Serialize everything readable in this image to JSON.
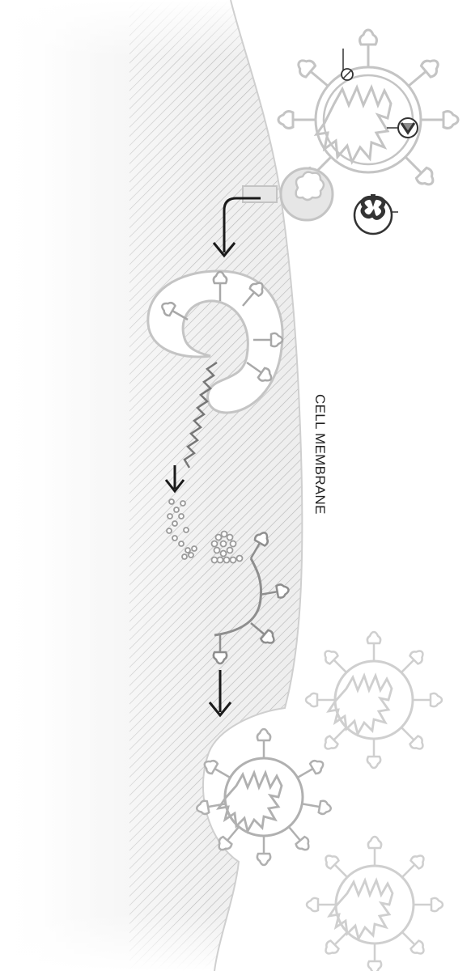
{
  "diagram": {
    "title": "",
    "label_membrane": "CELL MEMBRANE"
  },
  "colors": {
    "virus_stroke": "#bdbdbd",
    "virus_stroke_dark": "#8e8e8e",
    "arrow": "#1a1a1a",
    "membrane_hatch": "#b8b8b8",
    "receptor_fill": "#e6e6e6",
    "background": "#ffffff"
  },
  "icons": {
    "stage_1": "virus-attaching-icon",
    "stage_2": "endosome-icon",
    "stage_3": "rna-release-icon",
    "stage_4": "protein-assembly-icon",
    "stage_5": "budding-virus-icon"
  }
}
